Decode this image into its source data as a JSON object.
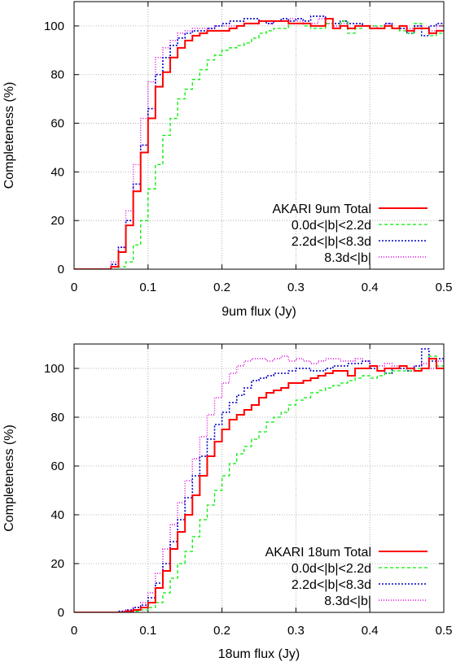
{
  "chart_data": [
    {
      "type": "line",
      "step": true,
      "xlabel": "9um flux (Jy)",
      "ylabel": "Completeness (%)",
      "xlim": [
        0,
        0.5
      ],
      "ylim": [
        0,
        110
      ],
      "xticks": [
        0,
        0.1,
        0.2,
        0.3,
        0.4,
        0.5
      ],
      "yticks": [
        0,
        20,
        40,
        60,
        80,
        100
      ],
      "tick_labels_x": [
        "0",
        "0.1",
        "0.2",
        "0.3",
        "0.4",
        "0.5"
      ],
      "tick_labels_y": [
        "0",
        "20",
        "40",
        "60",
        "80",
        "100"
      ],
      "grid": true,
      "legend_position": "bottom-right",
      "x": [
        0,
        0.01,
        0.02,
        0.03,
        0.04,
        0.05,
        0.06,
        0.07,
        0.08,
        0.09,
        0.1,
        0.11,
        0.12,
        0.13,
        0.14,
        0.15,
        0.16,
        0.17,
        0.18,
        0.19,
        0.2,
        0.21,
        0.22,
        0.23,
        0.24,
        0.25,
        0.26,
        0.27,
        0.28,
        0.29,
        0.3,
        0.31,
        0.32,
        0.33,
        0.34,
        0.35,
        0.36,
        0.37,
        0.38,
        0.39,
        0.4,
        0.41,
        0.42,
        0.43,
        0.44,
        0.45,
        0.46,
        0.47,
        0.48,
        0.49
      ],
      "series": [
        {
          "name": "AKARI 9um Total",
          "color": "#ff0000",
          "dash": "solid",
          "width": 2,
          "values": [
            0,
            0,
            0,
            0,
            0,
            1,
            7,
            18,
            32,
            48,
            62,
            75,
            81,
            87,
            91,
            94,
            96,
            97,
            98,
            98,
            98,
            99,
            100,
            101,
            101,
            102,
            102,
            102,
            102,
            101,
            101,
            101,
            100,
            100,
            103,
            99,
            100,
            99,
            100,
            100,
            99,
            99,
            100,
            99,
            100,
            98,
            99,
            99,
            97,
            98
          ]
        },
        {
          "name": "0.0d<|b|<2.2d",
          "color": "#00ee00",
          "dash": "4,3",
          "width": 1.3,
          "values": [
            0,
            0,
            0,
            0,
            0,
            0,
            1,
            3,
            10,
            20,
            33,
            43,
            55,
            62,
            70,
            74,
            78,
            82,
            86,
            88,
            90,
            91,
            92,
            93,
            95,
            97,
            98,
            99,
            99,
            101,
            101,
            100,
            99,
            99,
            101,
            99,
            102,
            97,
            99,
            100,
            100,
            100,
            100,
            99,
            98,
            97,
            101,
            99,
            96,
            97
          ]
        },
        {
          "name": "2.2d<|b|<8.3d",
          "color": "#0000cc",
          "dash": "2,2",
          "width": 1.6,
          "values": [
            0,
            0,
            0,
            0,
            0,
            2,
            9,
            20,
            35,
            51,
            66,
            80,
            87,
            92,
            95,
            97,
            98,
            98,
            99,
            100,
            101,
            102,
            102,
            103,
            103,
            102,
            101,
            102,
            103,
            102,
            103,
            102,
            104,
            104,
            103,
            101,
            102,
            101,
            101,
            100,
            99,
            99,
            101,
            99,
            99,
            97,
            100,
            96,
            100,
            101
          ]
        },
        {
          "name": "8.3d<|b|",
          "color": "#dd00dd",
          "dash": "1,2",
          "width": 1.4,
          "values": [
            0,
            0,
            0,
            0,
            0,
            3,
            9,
            24,
            43,
            62,
            77,
            87,
            91,
            94,
            97,
            98,
            99,
            99,
            99,
            100,
            100,
            100,
            100,
            101,
            101,
            102,
            101,
            102,
            102,
            103,
            102,
            101,
            101,
            103,
            101,
            100,
            101,
            99,
            100,
            100,
            100,
            99,
            101,
            99,
            100,
            99,
            100,
            99,
            98,
            100
          ]
        }
      ]
    },
    {
      "type": "line",
      "step": true,
      "xlabel": "18um flux (Jy)",
      "ylabel": "Completeness (%)",
      "xlim": [
        0,
        0.5
      ],
      "ylim": [
        0,
        110
      ],
      "xticks": [
        0,
        0.1,
        0.2,
        0.3,
        0.4,
        0.5
      ],
      "yticks": [
        0,
        20,
        40,
        60,
        80,
        100
      ],
      "tick_labels_x": [
        "0",
        "0.1",
        "0.2",
        "0.3",
        "0.4",
        "0.5"
      ],
      "tick_labels_y": [
        "0",
        "20",
        "40",
        "60",
        "80",
        "100"
      ],
      "grid": true,
      "legend_position": "bottom-right",
      "x": [
        0,
        0.01,
        0.02,
        0.03,
        0.04,
        0.05,
        0.06,
        0.07,
        0.08,
        0.09,
        0.1,
        0.11,
        0.12,
        0.13,
        0.14,
        0.15,
        0.16,
        0.17,
        0.18,
        0.19,
        0.2,
        0.21,
        0.22,
        0.23,
        0.24,
        0.25,
        0.26,
        0.27,
        0.28,
        0.29,
        0.3,
        0.31,
        0.32,
        0.33,
        0.34,
        0.35,
        0.36,
        0.37,
        0.38,
        0.39,
        0.4,
        0.41,
        0.42,
        0.43,
        0.44,
        0.45,
        0.46,
        0.47,
        0.48,
        0.49
      ],
      "series": [
        {
          "name": "AKARI 18um Total",
          "color": "#ff0000",
          "dash": "solid",
          "width": 2,
          "values": [
            0,
            0,
            0,
            0,
            0,
            0,
            0,
            0.5,
            1,
            2,
            4,
            10,
            17,
            26,
            33,
            40,
            48,
            56,
            64,
            70,
            75,
            79,
            81,
            83,
            85,
            88,
            90,
            91,
            92,
            94,
            94,
            95,
            96,
            97,
            98,
            99,
            99,
            97,
            100,
            100,
            101,
            99,
            100,
            100,
            101,
            100,
            99,
            100,
            104,
            100
          ]
        },
        {
          "name": "0.0d<|b|<2.2d",
          "color": "#00ee00",
          "dash": "4,3",
          "width": 1.3,
          "values": [
            0,
            0,
            0,
            0,
            0,
            0,
            0,
            0,
            0.5,
            1,
            2,
            4,
            8,
            14,
            20,
            25,
            31,
            38,
            44,
            50,
            56,
            61,
            65,
            68,
            71,
            74,
            78,
            80,
            82,
            85,
            87,
            88,
            90,
            91,
            92,
            93,
            94,
            95,
            96,
            97,
            96,
            97,
            98,
            99,
            99,
            99,
            100,
            100,
            105,
            101
          ]
        },
        {
          "name": "2.2d<|b|<8.3d",
          "color": "#0000cc",
          "dash": "2,2",
          "width": 1.6,
          "values": [
            0,
            0,
            0,
            0,
            0,
            0,
            0.5,
            1,
            2,
            3,
            6,
            12,
            20,
            29,
            38,
            47,
            56,
            64,
            71,
            77,
            82,
            86,
            89,
            92,
            95,
            96,
            97,
            98,
            98,
            99,
            100,
            100,
            99,
            99,
            100,
            101,
            101,
            102,
            102,
            103,
            100,
            99,
            98,
            100,
            100,
            99,
            101,
            108,
            103,
            104
          ]
        },
        {
          "name": "8.3d<|b|",
          "color": "#dd00dd",
          "dash": "1,2",
          "width": 1.4,
          "values": [
            0,
            0,
            0,
            0,
            0,
            0,
            0.5,
            1,
            2,
            4,
            8,
            16,
            26,
            36,
            45,
            54,
            63,
            72,
            81,
            88,
            94,
            98,
            101,
            103,
            104,
            104,
            103,
            104,
            105,
            103,
            104,
            103,
            102,
            103,
            104,
            104,
            103,
            103,
            104,
            103,
            101,
            101,
            102,
            101,
            101,
            100,
            101,
            102,
            100,
            103
          ]
        }
      ]
    }
  ]
}
